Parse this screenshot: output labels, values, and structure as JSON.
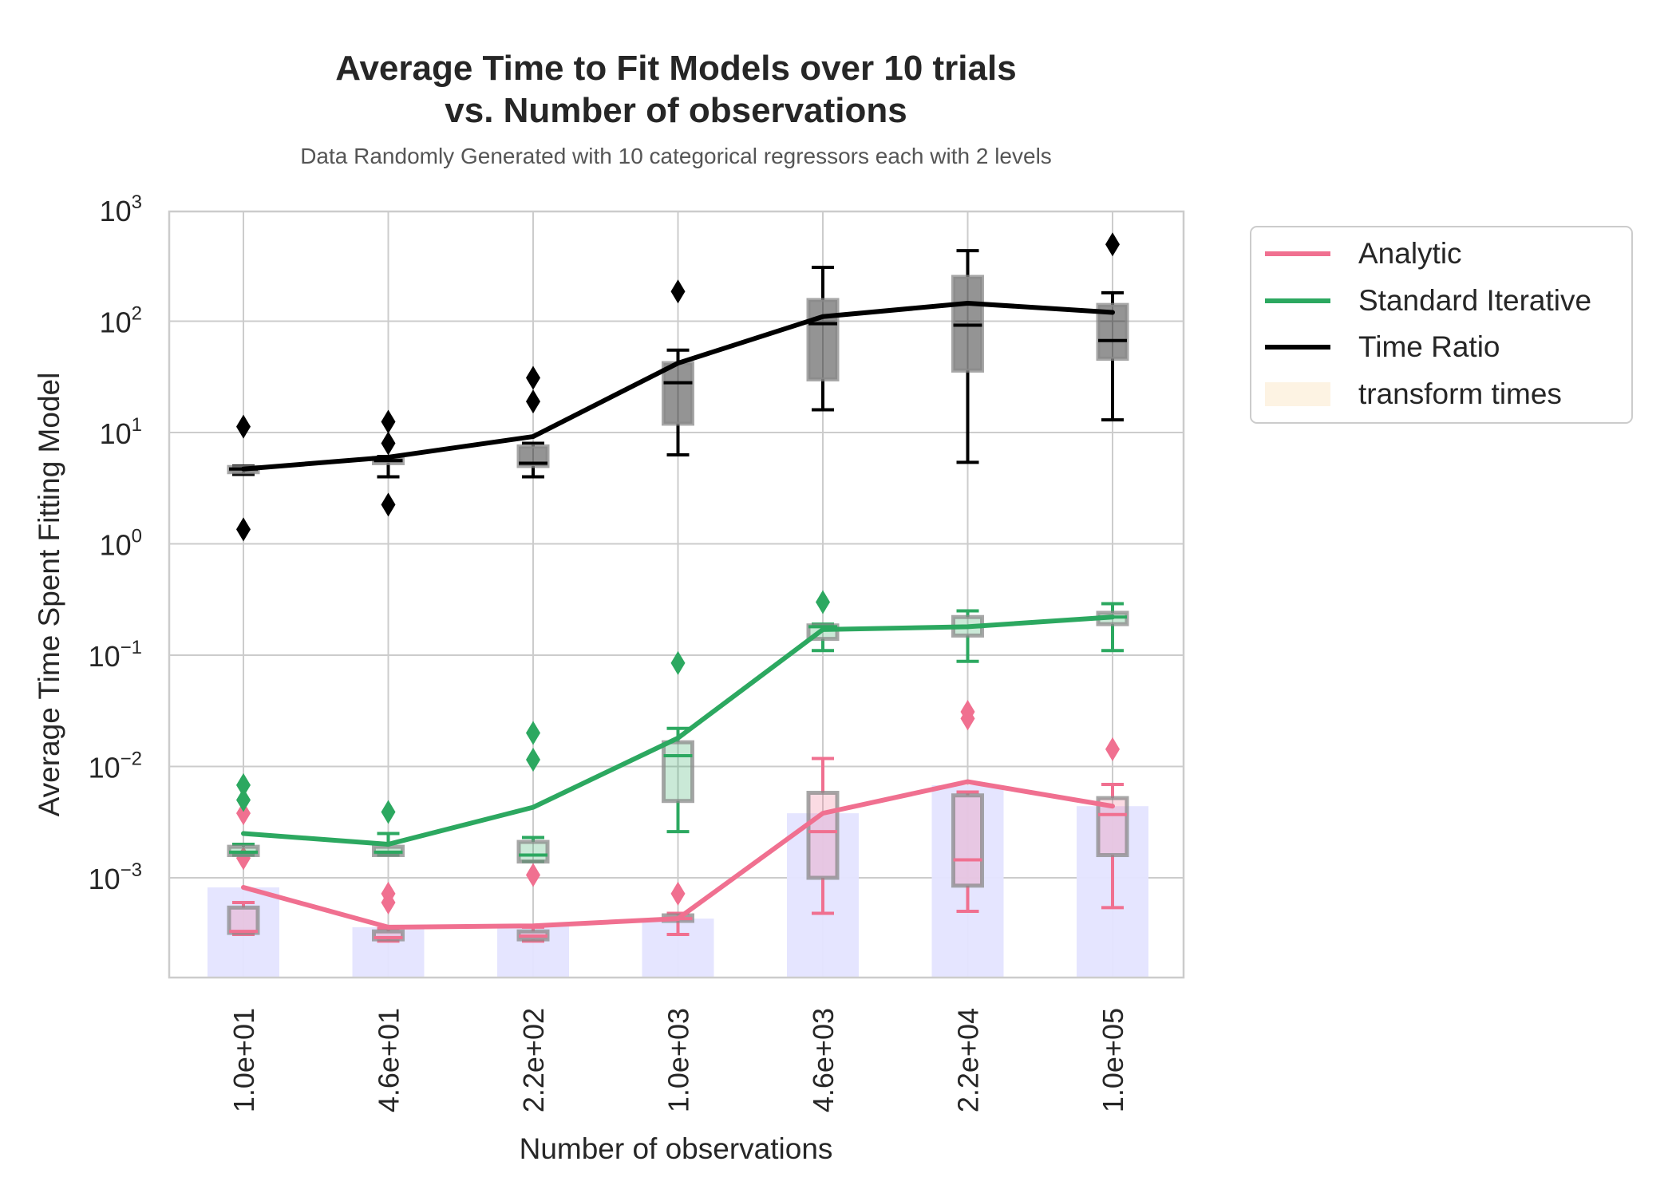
{
  "chart_data": {
    "type": "line",
    "title_lines": [
      "Average Time to Fit Models over 10 trials",
      "vs. Number of observations"
    ],
    "subtitle": "Data Randomly Generated with 10 categorical regressors each with 2 levels",
    "xlabel": "Number of observations",
    "ylabel": "Average Time Spent Fitting Model",
    "yscale": "log",
    "ylim": [
      0.00012,
      1000
    ],
    "grid": true,
    "legend_position": "outside-right",
    "categories": [
      "1.0e+01",
      "4.6e+01",
      "2.2e+02",
      "1.0e+03",
      "4.6e+03",
      "2.2e+04",
      "1.0e+05"
    ],
    "y_ticks": [
      {
        "base": "10",
        "exp": "−3",
        "value": 0.001
      },
      {
        "base": "10",
        "exp": "−2",
        "value": 0.01
      },
      {
        "base": "10",
        "exp": "−1",
        "value": 0.1
      },
      {
        "base": "10",
        "exp": "0",
        "value": 1
      },
      {
        "base": "10",
        "exp": "1",
        "value": 10
      },
      {
        "base": "10",
        "exp": "2",
        "value": 100
      },
      {
        "base": "10",
        "exp": "3",
        "value": 1000
      }
    ],
    "transform_bars": {
      "name": "transform times",
      "color": "#e4e4ff",
      "legend_color": "#fdf3e3",
      "values": [
        0.00082,
        0.00036,
        0.00037,
        0.00043,
        0.0038,
        0.0068,
        0.0044
      ]
    },
    "series": [
      {
        "name": "Analytic",
        "color": "#f07090",
        "mean": [
          0.00082,
          0.00036,
          0.00037,
          0.00043,
          0.0038,
          0.0073,
          0.0044
        ],
        "boxes": [
          {
            "whislo": 0.00031,
            "q1": 0.00032,
            "med": 0.00033,
            "q3": 0.00054,
            "whishi": 0.0006,
            "fliers": [
              0.0015,
              0.0038
            ]
          },
          {
            "whislo": 0.00027,
            "q1": 0.00028,
            "med": 0.00029,
            "q3": 0.00033,
            "whishi": 0.00035,
            "fliers": [
              0.0006,
              0.00072
            ]
          },
          {
            "whislo": 0.00027,
            "q1": 0.00028,
            "med": 0.0003,
            "q3": 0.00033,
            "whishi": 0.00036,
            "fliers": [
              0.00106
            ]
          },
          {
            "whislo": 0.00031,
            "q1": 0.00041,
            "med": 0.00043,
            "q3": 0.00046,
            "whishi": 0.00048,
            "fliers": [
              0.00072
            ]
          },
          {
            "whislo": 0.00048,
            "q1": 0.001,
            "med": 0.0026,
            "q3": 0.0058,
            "whishi": 0.0118,
            "fliers": []
          },
          {
            "whislo": 0.0005,
            "q1": 0.00085,
            "med": 0.00145,
            "q3": 0.0055,
            "whishi": 0.0059,
            "fliers": [
              0.027,
              0.031
            ]
          },
          {
            "whislo": 0.00054,
            "q1": 0.0016,
            "med": 0.0037,
            "q3": 0.0052,
            "whishi": 0.0069,
            "fliers": [
              0.0143
            ]
          }
        ]
      },
      {
        "name": "Standard Iterative",
        "color": "#2ca860",
        "mean": [
          0.0025,
          0.002,
          0.0043,
          0.018,
          0.17,
          0.18,
          0.22
        ],
        "boxes": [
          {
            "whislo": 0.0016,
            "q1": 0.0016,
            "med": 0.0017,
            "q3": 0.0019,
            "whishi": 0.002,
            "fliers": [
              0.005,
              0.0068
            ]
          },
          {
            "whislo": 0.0016,
            "q1": 0.0016,
            "med": 0.0017,
            "q3": 0.0019,
            "whishi": 0.0025,
            "fliers": [
              0.0039
            ]
          },
          {
            "whislo": 0.0014,
            "q1": 0.0014,
            "med": 0.0016,
            "q3": 0.0021,
            "whishi": 0.0023,
            "fliers": [
              0.0115,
              0.02
            ]
          },
          {
            "whislo": 0.0026,
            "q1": 0.0049,
            "med": 0.0125,
            "q3": 0.0165,
            "whishi": 0.022,
            "fliers": [
              0.085
            ]
          },
          {
            "whislo": 0.11,
            "q1": 0.14,
            "med": 0.18,
            "q3": 0.185,
            "whishi": 0.19,
            "fliers": [
              0.3
            ]
          },
          {
            "whislo": 0.088,
            "q1": 0.15,
            "med": 0.18,
            "q3": 0.22,
            "whishi": 0.25,
            "fliers": []
          },
          {
            "whislo": 0.11,
            "q1": 0.19,
            "med": 0.22,
            "q3": 0.24,
            "whishi": 0.29,
            "fliers": []
          }
        ]
      },
      {
        "name": "Time Ratio",
        "color": "#000000",
        "mean": [
          4.7,
          6.0,
          9.2,
          42,
          110,
          145,
          120
        ],
        "boxes": [
          {
            "whislo": 4.2,
            "q1": 4.4,
            "med": 4.7,
            "q3": 4.9,
            "whishi": 5.0,
            "fliers": [
              1.35,
              11.3
            ]
          },
          {
            "whislo": 4.0,
            "q1": 5.3,
            "med": 5.6,
            "q3": 5.9,
            "whishi": 6.1,
            "fliers": [
              2.25,
              8.0,
              12.5
            ]
          },
          {
            "whislo": 4.0,
            "q1": 5.0,
            "med": 5.3,
            "q3": 7.5,
            "whishi": 8.0,
            "fliers": [
              19,
              31
            ]
          },
          {
            "whislo": 6.3,
            "q1": 12,
            "med": 28,
            "q3": 42,
            "whishi": 55,
            "fliers": [
              185
            ]
          },
          {
            "whislo": 16,
            "q1": 30,
            "med": 95,
            "q3": 155,
            "whishi": 305,
            "fliers": []
          },
          {
            "whislo": 5.4,
            "q1": 36,
            "med": 92,
            "q3": 250,
            "whishi": 430,
            "fliers": []
          },
          {
            "whislo": 13,
            "q1": 46,
            "med": 67,
            "q3": 140,
            "whishi": 180,
            "fliers": [
              490
            ]
          }
        ]
      }
    ]
  }
}
